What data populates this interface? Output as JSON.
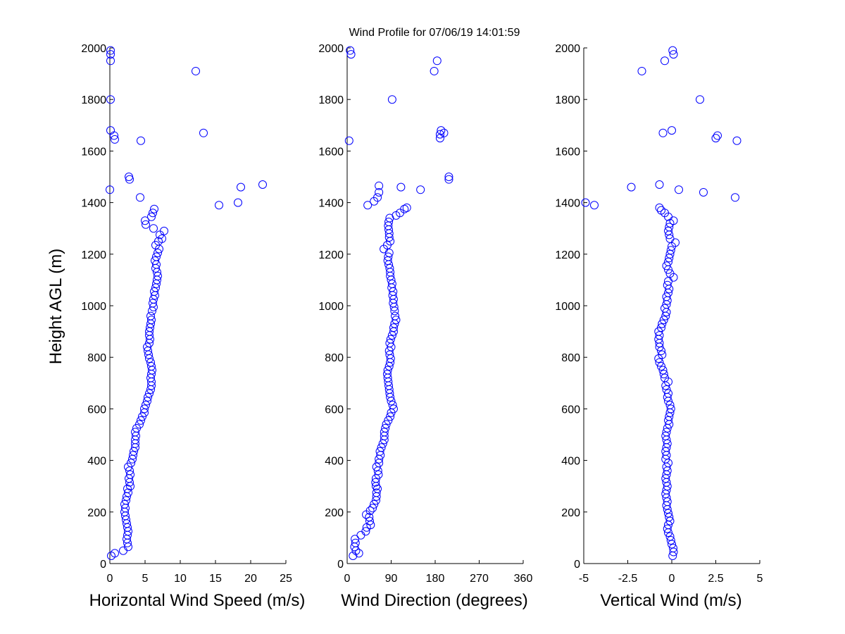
{
  "figure": {
    "title": "Wind Profile for  07/06/19 14:01:59"
  },
  "chart_data": [
    {
      "type": "scatter",
      "name": "speed",
      "xlabel": "Horizontal Wind Speed (m/s)",
      "ylabel": "Height AGL (m)",
      "xlim": [
        0,
        25
      ],
      "ylim": [
        0,
        2000
      ],
      "xticks": [
        0,
        5,
        10,
        15,
        20,
        25
      ],
      "xtick_labels": [
        "0",
        "5",
        "10",
        "15",
        "20",
        "25"
      ],
      "yticks": [
        0,
        200,
        400,
        600,
        800,
        1000,
        1200,
        1400,
        1600,
        1800,
        2000
      ],
      "ytick_labels": [
        "0",
        "200",
        "400",
        "600",
        "800",
        "1000",
        "1200",
        "1400",
        "1600",
        "1800",
        "2000"
      ],
      "marker": "open-circle",
      "color": "#0000ff",
      "points": [
        [
          0.2,
          30
        ],
        [
          0.7,
          40
        ],
        [
          1.9,
          50
        ],
        [
          2.6,
          65
        ],
        [
          2.5,
          80
        ],
        [
          2.4,
          95
        ],
        [
          2.5,
          110
        ],
        [
          2.6,
          125
        ],
        [
          2.5,
          140
        ],
        [
          2.4,
          155
        ],
        [
          2.3,
          170
        ],
        [
          2.2,
          185
        ],
        [
          2.1,
          200
        ],
        [
          2.2,
          215
        ],
        [
          2.1,
          230
        ],
        [
          2.3,
          245
        ],
        [
          2.4,
          260
        ],
        [
          2.6,
          275
        ],
        [
          2.5,
          290
        ],
        [
          2.9,
          300
        ],
        [
          2.8,
          315
        ],
        [
          2.7,
          330
        ],
        [
          2.9,
          345
        ],
        [
          2.8,
          360
        ],
        [
          2.6,
          375
        ],
        [
          3.0,
          390
        ],
        [
          3.2,
          405
        ],
        [
          3.3,
          420
        ],
        [
          3.4,
          435
        ],
        [
          3.6,
          450
        ],
        [
          3.6,
          465
        ],
        [
          3.6,
          480
        ],
        [
          3.7,
          495
        ],
        [
          3.6,
          510
        ],
        [
          3.8,
          525
        ],
        [
          4.2,
          540
        ],
        [
          4.4,
          555
        ],
        [
          4.6,
          570
        ],
        [
          4.9,
          585
        ],
        [
          4.9,
          600
        ],
        [
          5.1,
          615
        ],
        [
          5.3,
          630
        ],
        [
          5.4,
          645
        ],
        [
          5.6,
          660
        ],
        [
          5.8,
          675
        ],
        [
          5.9,
          690
        ],
        [
          5.9,
          705
        ],
        [
          5.8,
          720
        ],
        [
          5.9,
          735
        ],
        [
          6.0,
          750
        ],
        [
          5.9,
          765
        ],
        [
          5.8,
          780
        ],
        [
          5.6,
          795
        ],
        [
          5.5,
          810
        ],
        [
          5.4,
          825
        ],
        [
          5.3,
          840
        ],
        [
          5.6,
          855
        ],
        [
          5.7,
          870
        ],
        [
          5.6,
          885
        ],
        [
          5.6,
          900
        ],
        [
          5.7,
          915
        ],
        [
          5.8,
          930
        ],
        [
          5.9,
          945
        ],
        [
          5.8,
          960
        ],
        [
          6.0,
          980
        ],
        [
          6.2,
          995
        ],
        [
          6.1,
          1010
        ],
        [
          6.2,
          1025
        ],
        [
          6.4,
          1040
        ],
        [
          6.3,
          1055
        ],
        [
          6.5,
          1070
        ],
        [
          6.6,
          1085
        ],
        [
          6.7,
          1100
        ],
        [
          6.8,
          1115
        ],
        [
          6.7,
          1130
        ],
        [
          6.5,
          1145
        ],
        [
          6.6,
          1160
        ],
        [
          6.4,
          1175
        ],
        [
          6.6,
          1190
        ],
        [
          6.8,
          1205
        ],
        [
          7.0,
          1220
        ],
        [
          6.5,
          1235
        ],
        [
          6.9,
          1250
        ],
        [
          7.4,
          1260
        ],
        [
          7.1,
          1275
        ],
        [
          7.7,
          1290
        ],
        [
          6.2,
          1300
        ],
        [
          5.1,
          1315
        ],
        [
          5.0,
          1330
        ],
        [
          5.9,
          1345
        ],
        [
          6.1,
          1360
        ],
        [
          6.3,
          1375
        ],
        [
          4.3,
          1420
        ],
        [
          2.8,
          1490
        ],
        [
          2.7,
          1500
        ],
        [
          0.0,
          1450
        ],
        [
          18.2,
          1400
        ],
        [
          15.5,
          1390
        ],
        [
          18.6,
          1460
        ],
        [
          21.7,
          1470
        ],
        [
          0.1,
          1680
        ],
        [
          0.6,
          1660
        ],
        [
          0.7,
          1645
        ],
        [
          4.4,
          1640
        ],
        [
          13.3,
          1670
        ],
        [
          12.2,
          1910
        ],
        [
          0.1,
          1800
        ],
        [
          0.1,
          1950
        ],
        [
          0.1,
          1975
        ],
        [
          0.1,
          1990
        ]
      ]
    },
    {
      "type": "scatter",
      "name": "direction",
      "xlabel": "Wind Direction (degrees)",
      "ylabel": "",
      "xlim": [
        0,
        360
      ],
      "ylim": [
        0,
        2000
      ],
      "xticks": [
        0,
        90,
        180,
        270,
        360
      ],
      "xtick_labels": [
        "0",
        "90",
        "180",
        "270",
        "360"
      ],
      "yticks": [
        0,
        200,
        400,
        600,
        800,
        1000,
        1200,
        1400,
        1600,
        1800,
        2000
      ],
      "ytick_labels": [
        "0",
        "200",
        "400",
        "600",
        "800",
        "1000",
        "1200",
        "1400",
        "1600",
        "1800",
        "2000"
      ],
      "marker": "open-circle",
      "color": "#0000ff",
      "points": [
        [
          12,
          30
        ],
        [
          24,
          40
        ],
        [
          18,
          50
        ],
        [
          15,
          65
        ],
        [
          17,
          80
        ],
        [
          16,
          95
        ],
        [
          28,
          110
        ],
        [
          38,
          125
        ],
        [
          40,
          140
        ],
        [
          48,
          150
        ],
        [
          46,
          165
        ],
        [
          45,
          180
        ],
        [
          39,
          190
        ],
        [
          47,
          205
        ],
        [
          52,
          215
        ],
        [
          55,
          230
        ],
        [
          59,
          245
        ],
        [
          60,
          260
        ],
        [
          60,
          275
        ],
        [
          62,
          290
        ],
        [
          59,
          300
        ],
        [
          58,
          315
        ],
        [
          59,
          330
        ],
        [
          64,
          345
        ],
        [
          63,
          360
        ],
        [
          60,
          375
        ],
        [
          65,
          390
        ],
        [
          65,
          405
        ],
        [
          68,
          420
        ],
        [
          67,
          435
        ],
        [
          70,
          450
        ],
        [
          73,
          465
        ],
        [
          76,
          480
        ],
        [
          76,
          495
        ],
        [
          76,
          510
        ],
        [
          78,
          525
        ],
        [
          80,
          540
        ],
        [
          84,
          555
        ],
        [
          88,
          570
        ],
        [
          90,
          585
        ],
        [
          95,
          600
        ],
        [
          93,
          615
        ],
        [
          90,
          630
        ],
        [
          88,
          645
        ],
        [
          87,
          660
        ],
        [
          86,
          675
        ],
        [
          85,
          690
        ],
        [
          84,
          705
        ],
        [
          83,
          720
        ],
        [
          82,
          735
        ],
        [
          83,
          750
        ],
        [
          86,
          765
        ],
        [
          88,
          780
        ],
        [
          89,
          795
        ],
        [
          87,
          810
        ],
        [
          86,
          825
        ],
        [
          90,
          840
        ],
        [
          87,
          855
        ],
        [
          89,
          870
        ],
        [
          92,
          885
        ],
        [
          95,
          900
        ],
        [
          95,
          915
        ],
        [
          97,
          930
        ],
        [
          100,
          945
        ],
        [
          98,
          960
        ],
        [
          97,
          980
        ],
        [
          96,
          995
        ],
        [
          94,
          1010
        ],
        [
          95,
          1025
        ],
        [
          93,
          1040
        ],
        [
          94,
          1055
        ],
        [
          91,
          1070
        ],
        [
          92,
          1085
        ],
        [
          90,
          1100
        ],
        [
          88,
          1115
        ],
        [
          88,
          1130
        ],
        [
          87,
          1145
        ],
        [
          85,
          1160
        ],
        [
          83,
          1175
        ],
        [
          84,
          1190
        ],
        [
          86,
          1205
        ],
        [
          75,
          1220
        ],
        [
          82,
          1235
        ],
        [
          88,
          1250
        ],
        [
          86,
          1265
        ],
        [
          86,
          1280
        ],
        [
          85,
          1295
        ],
        [
          84,
          1310
        ],
        [
          85,
          1325
        ],
        [
          87,
          1340
        ],
        [
          100,
          1350
        ],
        [
          108,
          1360
        ],
        [
          117,
          1375
        ],
        [
          122,
          1380
        ],
        [
          42,
          1390
        ],
        [
          55,
          1405
        ],
        [
          62,
          1420
        ],
        [
          65,
          1440
        ],
        [
          65,
          1465
        ],
        [
          110,
          1460
        ],
        [
          150,
          1450
        ],
        [
          208,
          1490
        ],
        [
          208,
          1500
        ],
        [
          4,
          1640
        ],
        [
          190,
          1650
        ],
        [
          190,
          1665
        ],
        [
          198,
          1670
        ],
        [
          192,
          1680
        ],
        [
          92,
          1800
        ],
        [
          178,
          1910
        ],
        [
          184,
          1950
        ],
        [
          8,
          1975
        ],
        [
          6,
          1990
        ]
      ]
    },
    {
      "type": "scatter",
      "name": "vertical",
      "xlabel": "Vertical Wind (m/s)",
      "ylabel": "",
      "xlim": [
        -5,
        5
      ],
      "ylim": [
        0,
        2000
      ],
      "xticks": [
        -5,
        -2.5,
        0,
        2.5,
        5
      ],
      "xtick_labels": [
        "-5",
        "-2.5",
        "0",
        "2.5",
        "5"
      ],
      "yticks": [
        0,
        200,
        400,
        600,
        800,
        1000,
        1200,
        1400,
        1600,
        1800,
        2000
      ],
      "ytick_labels": [
        "0",
        "200",
        "400",
        "600",
        "800",
        "1000",
        "1200",
        "1400",
        "1600",
        "1800",
        "2000"
      ],
      "marker": "open-circle",
      "color": "#0000ff",
      "points": [
        [
          0.05,
          30
        ],
        [
          0.1,
          45
        ],
        [
          0.08,
          60
        ],
        [
          0.0,
          75
        ],
        [
          -0.05,
          90
        ],
        [
          -0.1,
          105
        ],
        [
          -0.2,
          120
        ],
        [
          -0.25,
          135
        ],
        [
          -0.2,
          150
        ],
        [
          -0.1,
          165
        ],
        [
          -0.15,
          180
        ],
        [
          -0.2,
          195
        ],
        [
          -0.25,
          210
        ],
        [
          -0.3,
          225
        ],
        [
          -0.25,
          240
        ],
        [
          -0.3,
          255
        ],
        [
          -0.35,
          270
        ],
        [
          -0.3,
          285
        ],
        [
          -0.25,
          300
        ],
        [
          -0.3,
          315
        ],
        [
          -0.35,
          330
        ],
        [
          -0.3,
          345
        ],
        [
          -0.25,
          360
        ],
        [
          -0.3,
          375
        ],
        [
          -0.2,
          390
        ],
        [
          -0.35,
          405
        ],
        [
          -0.3,
          420
        ],
        [
          -0.35,
          435
        ],
        [
          -0.3,
          450
        ],
        [
          -0.25,
          465
        ],
        [
          -0.3,
          480
        ],
        [
          -0.35,
          495
        ],
        [
          -0.3,
          510
        ],
        [
          -0.25,
          525
        ],
        [
          -0.15,
          540
        ],
        [
          -0.2,
          555
        ],
        [
          -0.15,
          570
        ],
        [
          -0.1,
          585
        ],
        [
          -0.05,
          600
        ],
        [
          -0.1,
          615
        ],
        [
          -0.2,
          630
        ],
        [
          -0.25,
          645
        ],
        [
          -0.2,
          660
        ],
        [
          -0.3,
          675
        ],
        [
          -0.35,
          690
        ],
        [
          -0.2,
          705
        ],
        [
          -0.4,
          720
        ],
        [
          -0.45,
          735
        ],
        [
          -0.5,
          750
        ],
        [
          -0.6,
          765
        ],
        [
          -0.7,
          780
        ],
        [
          -0.75,
          795
        ],
        [
          -0.55,
          810
        ],
        [
          -0.6,
          825
        ],
        [
          -0.7,
          840
        ],
        [
          -0.7,
          855
        ],
        [
          -0.75,
          870
        ],
        [
          -0.7,
          885
        ],
        [
          -0.75,
          900
        ],
        [
          -0.6,
          915
        ],
        [
          -0.55,
          930
        ],
        [
          -0.45,
          945
        ],
        [
          -0.35,
          960
        ],
        [
          -0.3,
          975
        ],
        [
          -0.4,
          990
        ],
        [
          -0.3,
          1005
        ],
        [
          -0.25,
          1020
        ],
        [
          -0.3,
          1035
        ],
        [
          -0.2,
          1050
        ],
        [
          -0.15,
          1065
        ],
        [
          -0.25,
          1080
        ],
        [
          -0.2,
          1095
        ],
        [
          0.1,
          1110
        ],
        [
          -0.1,
          1125
        ],
        [
          -0.2,
          1140
        ],
        [
          -0.3,
          1155
        ],
        [
          -0.2,
          1170
        ],
        [
          -0.15,
          1185
        ],
        [
          -0.1,
          1200
        ],
        [
          -0.05,
          1215
        ],
        [
          0.0,
          1230
        ],
        [
          0.2,
          1245
        ],
        [
          -0.1,
          1260
        ],
        [
          -0.15,
          1275
        ],
        [
          -0.2,
          1290
        ],
        [
          -0.15,
          1305
        ],
        [
          -0.1,
          1320
        ],
        [
          0.1,
          1330
        ],
        [
          -0.2,
          1345
        ],
        [
          -0.4,
          1360
        ],
        [
          -0.6,
          1370
        ],
        [
          -0.7,
          1380
        ],
        [
          -4.9,
          1400
        ],
        [
          -4.4,
          1390
        ],
        [
          -2.3,
          1460
        ],
        [
          -0.7,
          1470
        ],
        [
          0.4,
          1450
        ],
        [
          1.8,
          1440
        ],
        [
          3.6,
          1420
        ],
        [
          -0.5,
          1670
        ],
        [
          0.0,
          1680
        ],
        [
          2.5,
          1650
        ],
        [
          2.6,
          1660
        ],
        [
          3.7,
          1640
        ],
        [
          1.6,
          1800
        ],
        [
          -1.7,
          1910
        ],
        [
          -0.4,
          1950
        ],
        [
          0.1,
          1975
        ],
        [
          0.05,
          1990
        ]
      ]
    }
  ]
}
